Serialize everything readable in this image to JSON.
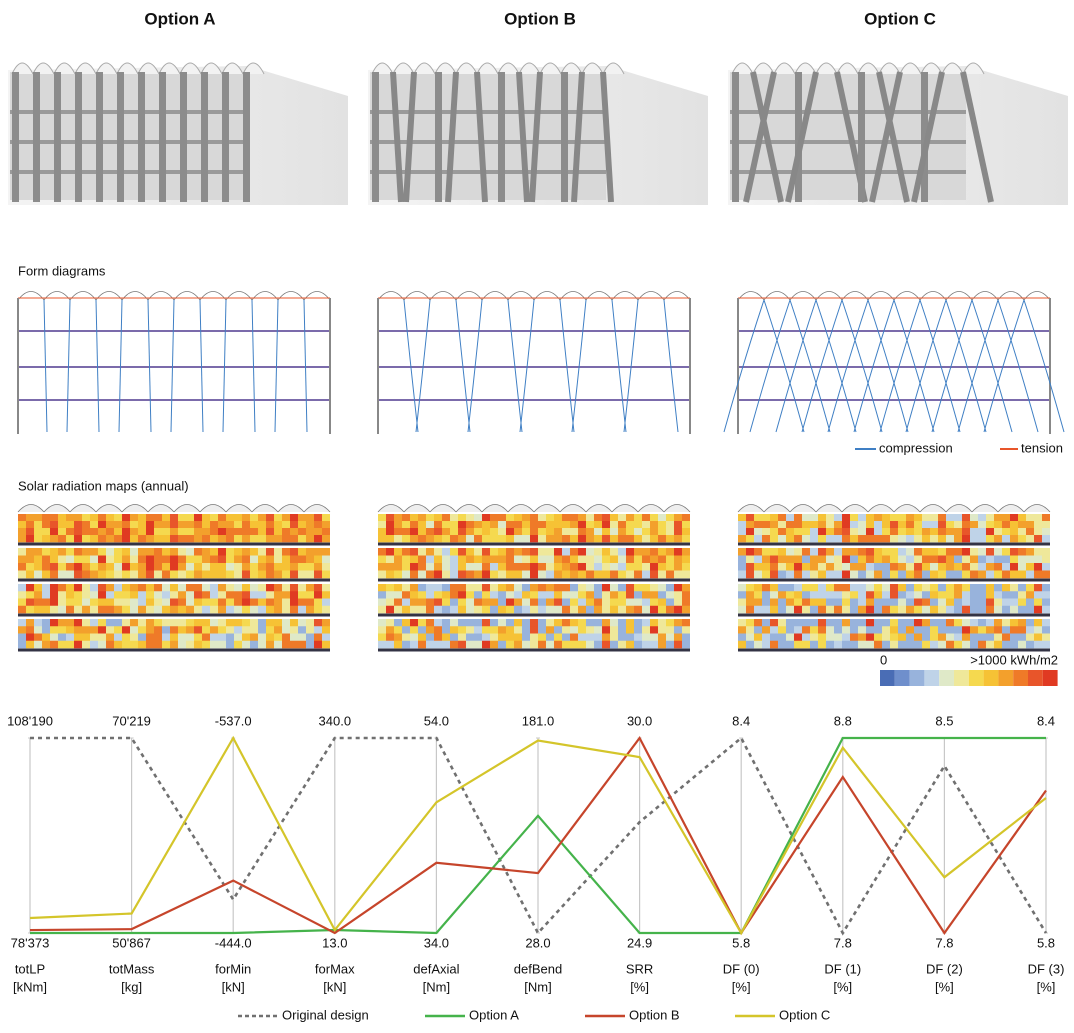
{
  "options": [
    "Option A",
    "Option B",
    "Option C"
  ],
  "sections": {
    "form_diagrams": "Form diagrams",
    "form_legend": [
      "compression",
      "tension"
    ],
    "solar": "Solar radiation maps (annual)",
    "colorbar": [
      "0",
      ">1000 kWh/m2"
    ]
  },
  "chart_data": {
    "type": "parallel",
    "axes": [
      {
        "name": "totLP",
        "unit": "[kNm]",
        "lim": [
          78373,
          108190
        ],
        "ticks": [
          {
            "value": 78373,
            "label": "78'373"
          },
          {
            "value": 108190,
            "label": "108'190"
          }
        ]
      },
      {
        "name": "totMass",
        "unit": "[kg]",
        "lim": [
          50867,
          70219
        ],
        "ticks": [
          {
            "value": 50867,
            "label": "50'867"
          },
          {
            "value": 70219,
            "label": "70'219"
          }
        ]
      },
      {
        "name": "forMin",
        "unit": "[kN]",
        "lim": [
          -444,
          -537
        ],
        "ticks": [
          {
            "value": -444,
            "label": "-444.0"
          },
          {
            "value": -537,
            "label": "-537.0"
          }
        ]
      },
      {
        "name": "forMax",
        "unit": "[kN]",
        "lim": [
          13,
          340
        ],
        "ticks": [
          {
            "value": 13,
            "label": "13.0"
          },
          {
            "value": 340,
            "label": "340.0"
          }
        ]
      },
      {
        "name": "defAxial",
        "unit": "[Nm]",
        "lim": [
          34,
          54
        ],
        "ticks": [
          {
            "value": 34,
            "label": "34.0"
          },
          {
            "value": 54,
            "label": "54.0"
          }
        ]
      },
      {
        "name": "defBend",
        "unit": "[Nm]",
        "lim": [
          28,
          181
        ],
        "ticks": [
          {
            "value": 28,
            "label": "28.0"
          },
          {
            "value": 181,
            "label": "181.0"
          }
        ]
      },
      {
        "name": "SRR",
        "unit": "[%]",
        "lim": [
          24.9,
          30
        ],
        "ticks": [
          24.9,
          {
            "value": 30,
            "label": "30.0"
          }
        ]
      },
      {
        "name": "DF (0)",
        "unit": "[%]",
        "lim": [
          5.8,
          8.4
        ],
        "ticks": [
          5.8,
          8.4
        ]
      },
      {
        "name": "DF (1)",
        "unit": "[%]",
        "lim": [
          7.8,
          8.8
        ],
        "ticks": [
          7.8,
          8.8
        ]
      },
      {
        "name": "DF (2)",
        "unit": "[%]",
        "lim": [
          7.8,
          8.5
        ],
        "ticks": [
          7.8,
          8.5
        ]
      },
      {
        "name": "DF (3)",
        "unit": "[%]",
        "lim": [
          5.8,
          8.4
        ],
        "ticks": [
          5.8,
          8.4
        ]
      }
    ],
    "series": [
      {
        "name": "Original design",
        "color": "#707070",
        "dashed": true,
        "values": [
          108190,
          70219,
          -460,
          340,
          54,
          28,
          27.8,
          8.4,
          7.8,
          8.4,
          5.8
        ]
      },
      {
        "name": "Option A",
        "color": "#45b34b",
        "dashed": false,
        "values": [
          78373,
          50867,
          -444,
          18,
          34,
          120,
          24.9,
          5.8,
          8.8,
          8.5,
          8.4
        ]
      },
      {
        "name": "Option B",
        "color": "#c6452b",
        "dashed": false,
        "values": [
          78820,
          51250,
          -469,
          13,
          41.2,
          75,
          30,
          5.8,
          8.6,
          7.8,
          7.7
        ]
      },
      {
        "name": "Option C",
        "color": "#d4c52a",
        "dashed": false,
        "values": [
          80670,
          52800,
          -537,
          18,
          47.4,
          179,
          29.5,
          5.8,
          8.75,
          8.0,
          7.6
        ]
      }
    ]
  }
}
